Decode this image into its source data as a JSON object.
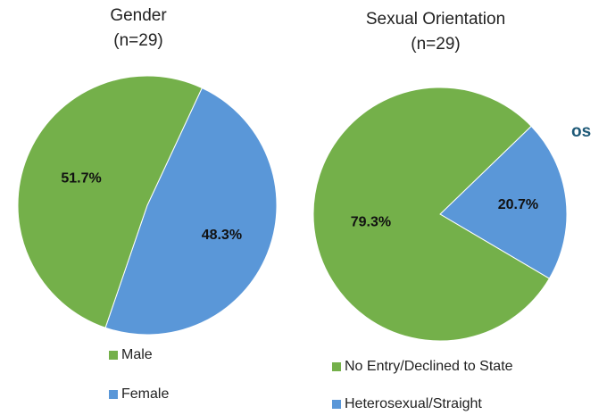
{
  "chart_data": [
    {
      "type": "pie",
      "title": "Gender",
      "subtitle": "(n=29)",
      "categories": [
        "Male",
        "Female"
      ],
      "values": [
        51.7,
        48.3
      ],
      "value_labels": [
        "51.7%",
        "48.3%"
      ],
      "colors": [
        "#74b04a",
        "#5a97d8"
      ]
    },
    {
      "type": "pie",
      "title": "Sexual Orientation",
      "subtitle": "(n=29)",
      "categories": [
        "No Entry/Declined to State",
        "Heterosexual/Straight"
      ],
      "values": [
        79.3,
        20.7
      ],
      "value_labels": [
        "79.3%",
        "20.7%"
      ],
      "colors": [
        "#74b04a",
        "#5a97d8"
      ]
    }
  ],
  "background_text": "os"
}
